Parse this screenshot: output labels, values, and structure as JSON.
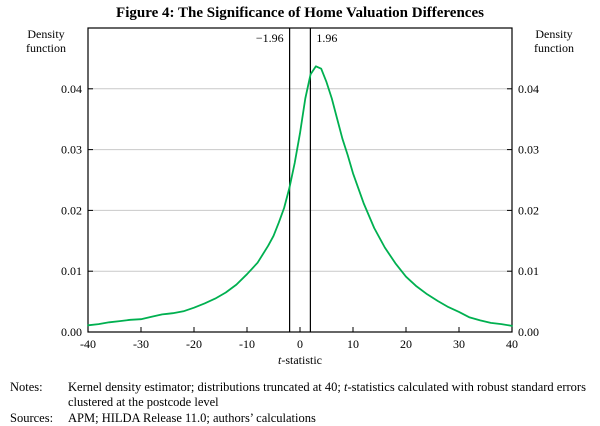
{
  "chart_data": {
    "type": "line",
    "title": "Figure 4: The Significance of Home Valuation Differences",
    "xlabel_italic": "t",
    "xlabel_rest": "-statistic",
    "ylabel_lines": [
      "Density",
      "function"
    ],
    "xlim": [
      -40,
      40
    ],
    "ylim": [
      0,
      0.05
    ],
    "x_ticks": [
      -40,
      -30,
      -20,
      -10,
      0,
      10,
      20,
      30,
      40
    ],
    "x_tick_labels": [
      "-40",
      "-30",
      "-20",
      "-10",
      "0",
      "10",
      "20",
      "30",
      "40"
    ],
    "y_tick_values": [
      0,
      0.01,
      0.02,
      0.03,
      0.04
    ],
    "y_ticks": [
      "0.00",
      "0.01",
      "0.02",
      "0.03",
      "0.04"
    ],
    "grid": true,
    "legend": "none",
    "vlines": [
      {
        "x": -1.96,
        "label": "−1.96",
        "label_side": "left"
      },
      {
        "x": 1.96,
        "label": "1.96",
        "label_side": "right"
      }
    ],
    "series": [
      {
        "name": "Kernel density of t-statistics",
        "color": "#00B050",
        "x": [
          -40,
          -38,
          -36,
          -34,
          -32,
          -30,
          -28,
          -26,
          -25,
          -24,
          -22,
          -20,
          -18,
          -16,
          -14,
          -12,
          -10,
          -8,
          -6,
          -5,
          -4,
          -3,
          -2,
          -1,
          0,
          1,
          2,
          3,
          4,
          5,
          6,
          7,
          8,
          9,
          10,
          12,
          14,
          16,
          18,
          20,
          22,
          24,
          26,
          28,
          30,
          32,
          34,
          36,
          38,
          40
        ],
        "y": [
          0.0011,
          0.0013,
          0.0016,
          0.0018,
          0.002,
          0.0021,
          0.0025,
          0.0029,
          0.003,
          0.0031,
          0.0034,
          0.004,
          0.0047,
          0.0055,
          0.0065,
          0.0078,
          0.0095,
          0.0114,
          0.0142,
          0.0158,
          0.018,
          0.0204,
          0.0237,
          0.0278,
          0.0327,
          0.0384,
          0.0424,
          0.0437,
          0.0433,
          0.0411,
          0.0384,
          0.0351,
          0.0318,
          0.0291,
          0.0261,
          0.0212,
          0.0171,
          0.0139,
          0.0113,
          0.0091,
          0.0075,
          0.0062,
          0.0051,
          0.0041,
          0.0033,
          0.0024,
          0.0019,
          0.0015,
          0.0013,
          0.001
        ]
      }
    ]
  },
  "notes": {
    "label": "Notes:",
    "body_pre": "Kernel density estimator; distributions truncated at 40; ",
    "body_italic": "t",
    "body_post": "-statistics calculated with robust standard errors clustered at the postcode level"
  },
  "sources": {
    "label": "Sources:",
    "body": "APM; HILDA Release 11.0; authors’ calculations"
  }
}
